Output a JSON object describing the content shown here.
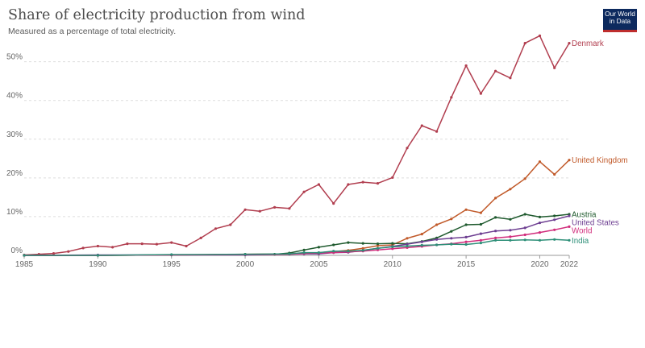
{
  "header": {
    "title": "Share of electricity production from wind",
    "subtitle": "Measured as a percentage of total electricity.",
    "logo_line1": "Our World",
    "logo_line2": "in Data"
  },
  "chart_data": {
    "type": "line",
    "title": "Share of electricity production from wind",
    "subtitle": "Measured as a percentage of total electricity.",
    "xlabel": "",
    "ylabel": "",
    "xlim": [
      1985,
      2022
    ],
    "ylim": [
      0,
      57
    ],
    "grid": true,
    "legend": "inline labels at line ends",
    "x_ticks": [
      "1985",
      "1990",
      "1995",
      "2000",
      "2005",
      "2010",
      "2015",
      "2020",
      "2022"
    ],
    "y_ticks": [
      {
        "value": 0,
        "label": "0%"
      },
      {
        "value": 10,
        "label": "10%"
      },
      {
        "value": 20,
        "label": "20%"
      },
      {
        "value": 30,
        "label": "30%"
      },
      {
        "value": 40,
        "label": "40%"
      },
      {
        "value": 50,
        "label": "50%"
      }
    ],
    "series": [
      {
        "name": "Denmark",
        "color": "#b13e4f",
        "x": [
          1985,
          1986,
          1987,
          1988,
          1989,
          1990,
          1991,
          1992,
          1993,
          1994,
          1995,
          1996,
          1997,
          1998,
          1999,
          2000,
          2001,
          2002,
          2003,
          2004,
          2005,
          2006,
          2007,
          2008,
          2009,
          2010,
          2011,
          2012,
          2013,
          2014,
          2015,
          2016,
          2017,
          2018,
          2019,
          2020,
          2021,
          2022
        ],
        "y": [
          0.1,
          0.3,
          0.5,
          1.0,
          1.9,
          2.4,
          2.1,
          3.0,
          3.0,
          2.9,
          3.3,
          2.4,
          4.5,
          6.9,
          7.9,
          11.8,
          11.4,
          12.4,
          12.1,
          16.4,
          18.3,
          13.4,
          18.3,
          18.9,
          18.6,
          20.1,
          27.7,
          33.5,
          32.0,
          40.8,
          49.0,
          41.8,
          47.6,
          45.8,
          54.8,
          56.7,
          48.4,
          54.8
        ]
      },
      {
        "name": "United Kingdom",
        "color": "#c15a2a",
        "x": [
          1985,
          1990,
          1995,
          2000,
          2003,
          2004,
          2005,
          2006,
          2007,
          2008,
          2009,
          2010,
          2011,
          2012,
          2013,
          2014,
          2015,
          2016,
          2017,
          2018,
          2019,
          2020,
          2021,
          2022
        ],
        "y": [
          0,
          0,
          0.1,
          0.3,
          0.4,
          0.5,
          0.7,
          1.0,
          1.3,
          1.8,
          2.5,
          2.7,
          4.4,
          5.5,
          7.9,
          9.4,
          11.8,
          11.0,
          14.8,
          17.1,
          19.8,
          24.2,
          20.9,
          24.6
        ]
      },
      {
        "name": "Austria",
        "color": "#1f5a2e",
        "x": [
          1985,
          1990,
          1995,
          2000,
          2002,
          2003,
          2004,
          2005,
          2006,
          2007,
          2008,
          2009,
          2010,
          2011,
          2012,
          2013,
          2014,
          2015,
          2016,
          2017,
          2018,
          2019,
          2020,
          2021,
          2022
        ],
        "y": [
          0,
          0,
          0.1,
          0.2,
          0.3,
          0.6,
          1.4,
          2.1,
          2.7,
          3.3,
          3.1,
          3.0,
          3.1,
          3.0,
          3.6,
          4.5,
          6.2,
          7.9,
          8.0,
          9.8,
          9.3,
          10.6,
          9.9,
          10.2,
          10.6
        ]
      },
      {
        "name": "United States",
        "color": "#6d3e91",
        "x": [
          1985,
          1990,
          1995,
          2000,
          2003,
          2004,
          2005,
          2006,
          2007,
          2008,
          2009,
          2010,
          2011,
          2012,
          2013,
          2014,
          2015,
          2016,
          2017,
          2018,
          2019,
          2020,
          2021,
          2022
        ],
        "y": [
          0,
          0.1,
          0.1,
          0.1,
          0.3,
          0.4,
          0.4,
          0.7,
          0.8,
          1.3,
          1.8,
          2.3,
          2.9,
          3.5,
          4.1,
          4.4,
          4.7,
          5.6,
          6.3,
          6.5,
          7.1,
          8.4,
          9.2,
          10.2
        ]
      },
      {
        "name": "World",
        "color": "#d12d7c",
        "x": [
          1985,
          1990,
          1995,
          2000,
          2003,
          2004,
          2005,
          2006,
          2007,
          2008,
          2009,
          2010,
          2011,
          2012,
          2013,
          2014,
          2015,
          2016,
          2017,
          2018,
          2019,
          2020,
          2021,
          2022
        ],
        "y": [
          0,
          0,
          0.1,
          0.2,
          0.3,
          0.5,
          0.6,
          0.7,
          0.9,
          1.1,
          1.4,
          1.7,
          2.0,
          2.3,
          2.7,
          3.0,
          3.5,
          3.9,
          4.5,
          4.8,
          5.3,
          5.9,
          6.6,
          7.4
        ]
      },
      {
        "name": "India",
        "color": "#2d8f78",
        "x": [
          1985,
          1990,
          1995,
          2000,
          2003,
          2004,
          2005,
          2006,
          2007,
          2008,
          2009,
          2010,
          2011,
          2012,
          2013,
          2014,
          2015,
          2016,
          2017,
          2018,
          2019,
          2020,
          2021,
          2022
        ],
        "y": [
          0,
          0,
          0.2,
          0.3,
          0.4,
          0.7,
          0.7,
          1.1,
          1.1,
          1.3,
          1.8,
          2.2,
          2.4,
          2.6,
          2.7,
          2.9,
          2.8,
          3.2,
          3.9,
          3.9,
          4.0,
          3.9,
          4.1,
          3.9
        ]
      }
    ]
  }
}
